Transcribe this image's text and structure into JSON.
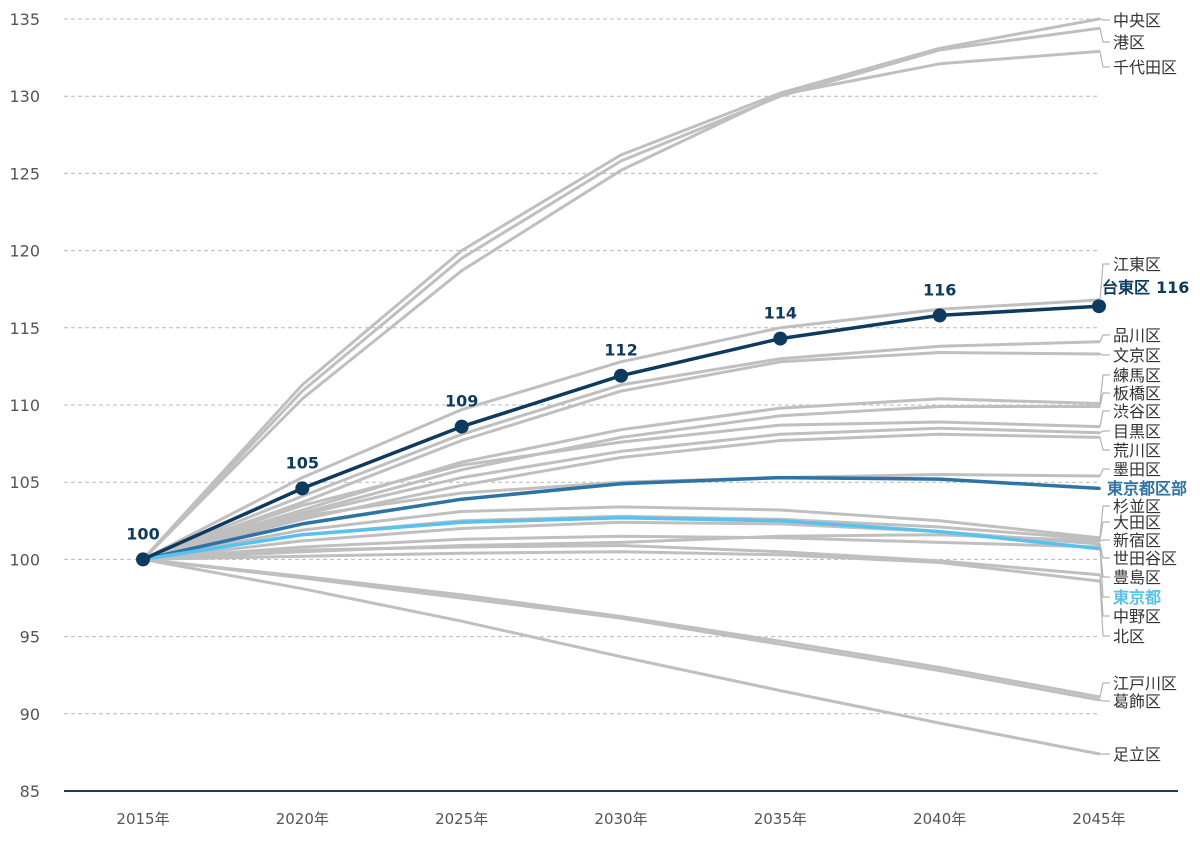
{
  "chart_data": {
    "type": "line",
    "x": [
      "2015年",
      "2020年",
      "2025年",
      "2030年",
      "2035年",
      "2040年",
      "2045年"
    ],
    "ylim": [
      85,
      135
    ],
    "yticks": [
      85,
      90,
      95,
      100,
      105,
      110,
      115,
      120,
      125,
      130,
      135
    ],
    "grid": true,
    "legend": "right",
    "colors": {
      "grid": "#b9b9b9",
      "axis": "#1f3d5c",
      "tick_text": "#555555",
      "label_text": "#333333",
      "leader": "#b3b3b3"
    },
    "series": [
      {
        "name": "中央区",
        "values": [
          100,
          111.3,
          120.0,
          126.2,
          130.2,
          133.1,
          135.0
        ],
        "color": "#bfbfbf"
      },
      {
        "name": "港区",
        "values": [
          100,
          110.9,
          119.5,
          125.8,
          130.0,
          133.0,
          134.4
        ],
        "color": "#bfbfbf"
      },
      {
        "name": "千代田区",
        "values": [
          100,
          110.4,
          118.7,
          125.2,
          130.1,
          132.1,
          132.9
        ],
        "color": "#bfbfbf"
      },
      {
        "name": "江東区",
        "values": [
          100,
          105.3,
          109.7,
          112.8,
          115.0,
          116.2,
          116.8
        ],
        "color": "#bfbfbf"
      },
      {
        "name": "台東区",
        "values": [
          100,
          104.6,
          108.6,
          111.9,
          114.3,
          115.8,
          116.4
        ],
        "color": "#0d3a5f",
        "bold_label": true,
        "markers": true,
        "end_value_label": "116",
        "data_labels": [
          "100",
          "105",
          "109",
          "112",
          "114",
          "116"
        ]
      },
      {
        "name": "品川区",
        "values": [
          100,
          104.1,
          108.1,
          111.3,
          113.0,
          113.8,
          114.1
        ],
        "color": "#bfbfbf"
      },
      {
        "name": "文京区",
        "values": [
          100,
          103.7,
          107.7,
          110.9,
          112.8,
          113.4,
          113.3
        ],
        "color": "#bfbfbf"
      },
      {
        "name": "練馬区",
        "values": [
          100,
          103.2,
          106.3,
          108.4,
          109.8,
          110.4,
          110.1
        ],
        "color": "#bfbfbf"
      },
      {
        "name": "板橋区",
        "values": [
          100,
          103.0,
          105.8,
          107.9,
          109.3,
          109.9,
          109.9
        ],
        "color": "#bfbfbf"
      },
      {
        "name": "渋谷区",
        "values": [
          100,
          103.5,
          106.1,
          107.6,
          108.7,
          108.9,
          108.6
        ],
        "color": "#bfbfbf"
      },
      {
        "name": "目黒区",
        "values": [
          100,
          102.9,
          105.3,
          107.0,
          108.1,
          108.5,
          108.2
        ],
        "color": "#bfbfbf"
      },
      {
        "name": "荒川区",
        "values": [
          100,
          102.6,
          104.8,
          106.6,
          107.7,
          108.1,
          107.9
        ],
        "color": "#bfbfbf"
      },
      {
        "name": "墨田区",
        "values": [
          100,
          102.8,
          104.3,
          105.0,
          105.3,
          105.5,
          105.4
        ],
        "color": "#bfbfbf"
      },
      {
        "name": "東京都区部",
        "values": [
          100,
          102.3,
          103.9,
          104.9,
          105.3,
          105.2,
          104.6
        ],
        "color": "#2e73a6",
        "bold_label": true
      },
      {
        "name": "杉並区",
        "values": [
          100,
          101.9,
          103.1,
          103.4,
          103.2,
          102.5,
          101.4
        ],
        "color": "#bfbfbf"
      },
      {
        "name": "大田区",
        "values": [
          100,
          101.6,
          102.5,
          102.8,
          102.6,
          102.1,
          101.3
        ],
        "color": "#bfbfbf"
      },
      {
        "name": "新宿区",
        "values": [
          100,
          100.5,
          100.9,
          101.1,
          101.5,
          101.6,
          101.2
        ],
        "color": "#bfbfbf"
      },
      {
        "name": "世田谷区",
        "values": [
          100,
          101.2,
          102.0,
          102.4,
          102.3,
          101.8,
          101.0
        ],
        "color": "#bfbfbf"
      },
      {
        "name": "豊島区",
        "values": [
          100,
          100.8,
          101.3,
          101.5,
          101.4,
          101.1,
          100.8
        ],
        "color": "#bfbfbf"
      },
      {
        "name": "東京都",
        "values": [
          100,
          101.6,
          102.4,
          102.7,
          102.5,
          101.8,
          100.7
        ],
        "color": "#58c2ef",
        "bold_label": true
      },
      {
        "name": "中野区",
        "values": [
          100,
          100.6,
          100.8,
          100.9,
          100.5,
          99.9,
          99.0
        ],
        "color": "#bfbfbf"
      },
      {
        "name": "北区",
        "values": [
          100,
          100.2,
          100.4,
          100.5,
          100.3,
          99.8,
          98.6
        ],
        "color": "#bfbfbf"
      },
      {
        "name": "江戸川区",
        "values": [
          100,
          98.9,
          97.7,
          96.3,
          94.7,
          93.0,
          91.1
        ],
        "color": "#bfbfbf"
      },
      {
        "name": "葛飾区",
        "values": [
          100,
          98.8,
          97.5,
          96.2,
          94.5,
          92.8,
          90.9
        ],
        "color": "#bfbfbf"
      },
      {
        "name": "足立区",
        "values": [
          100,
          98.1,
          96.0,
          93.7,
          91.5,
          89.4,
          87.4
        ],
        "color": "#bfbfbf"
      }
    ]
  }
}
